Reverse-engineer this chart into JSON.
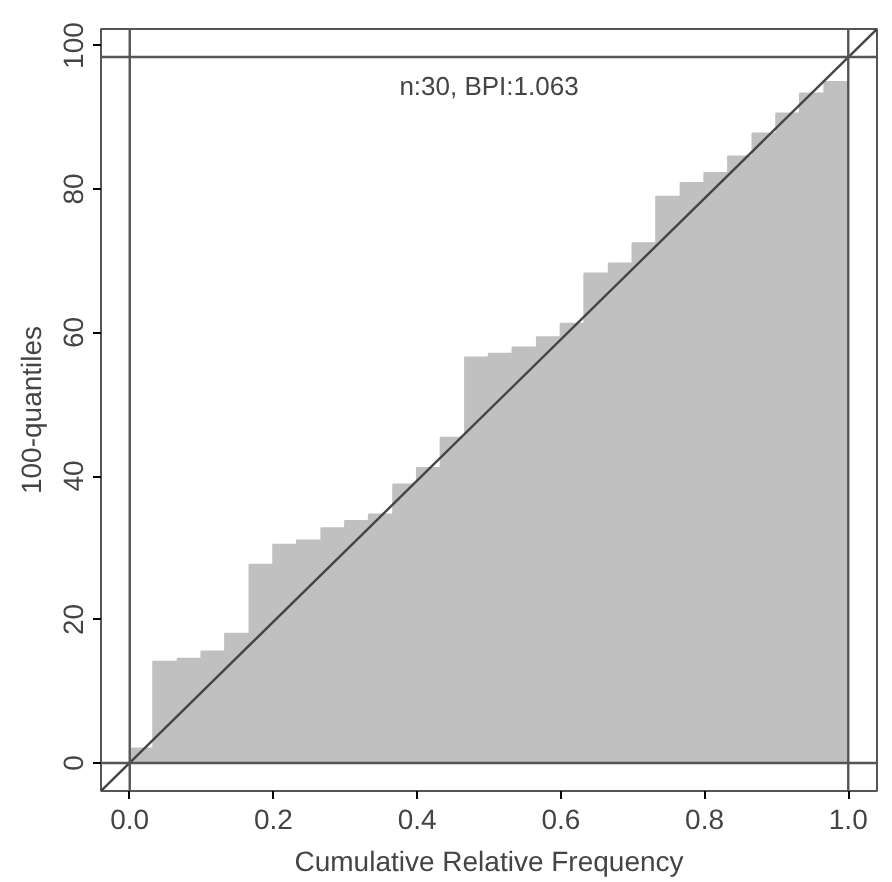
{
  "chart_data": {
    "type": "area",
    "xlabel": "Cumulative Relative Frequency",
    "ylabel": "100-quantiles",
    "annotations": [
      "n:30, BPI:1.063"
    ],
    "xlim": [
      -0.04,
      1.04
    ],
    "ylim": [
      -3.9,
      102.3
    ],
    "xticks": [
      {
        "value": 0,
        "label": "0.0"
      },
      0.2,
      0.4,
      0.6,
      0.8,
      {
        "value": 1,
        "label": "1.0"
      }
    ],
    "yticks": [
      0,
      20,
      40,
      60,
      80,
      100
    ],
    "grid": false,
    "series": [
      {
        "color": "#c0c0c0",
        "x": [
          0,
          0.033,
          0.033,
          0.067,
          0.067,
          0.1,
          0.1,
          0.133,
          0.133,
          0.167,
          0.167,
          0.2,
          0.2,
          0.233,
          0.233,
          0.267,
          0.267,
          0.3,
          0.3,
          0.333,
          0.333,
          0.367,
          0.367,
          0.4,
          0.4,
          0.433,
          0.433,
          0.467,
          0.467,
          0.5,
          0.5,
          0.533,
          0.533,
          0.567,
          0.567,
          0.6,
          0.6,
          0.633,
          0.633,
          0.667,
          0.667,
          0.7,
          0.7,
          0.733,
          0.733,
          0.767,
          0.767,
          0.8,
          0.8,
          0.833,
          0.833,
          0.867,
          0.867,
          0.9,
          0.9,
          0.933,
          0.933,
          0.967,
          0.967,
          1
        ],
        "values": [
          2,
          2,
          14.1,
          14.1,
          14.5,
          14.5,
          15.5,
          15.5,
          18,
          18,
          27.6,
          27.6,
          30.4,
          30.4,
          31,
          31,
          32.7,
          32.7,
          33.7,
          33.7,
          34.6,
          34.6,
          38.8,
          38.8,
          41.1,
          41.1,
          45.3,
          45.3,
          56.5,
          56.5,
          57,
          57,
          57.9,
          57.9,
          59.3,
          59.3,
          61.2,
          61.2,
          68.2,
          68.2,
          69.6,
          69.6,
          72.4,
          72.4,
          78.9,
          78.9,
          80.8,
          80.8,
          82.2,
          82.2,
          84.5,
          84.5,
          87.7,
          87.7,
          90.5,
          90.5,
          93.3,
          93.3,
          94.9,
          94.9
        ]
      },
      {
        "type": "line",
        "color": "#444444",
        "x": [
          -0.04,
          1.04
        ],
        "values": [
          -3.9,
          102.3
        ]
      }
    ],
    "ref_lines": [
      {
        "axis": "y",
        "value": 0,
        "color": "#555555"
      },
      {
        "axis": "y",
        "value": 98.4,
        "color": "#555555"
      },
      {
        "axis": "x",
        "value": 0,
        "color": "#555555"
      },
      {
        "axis": "x",
        "value": 1,
        "color": "#555555"
      }
    ]
  }
}
